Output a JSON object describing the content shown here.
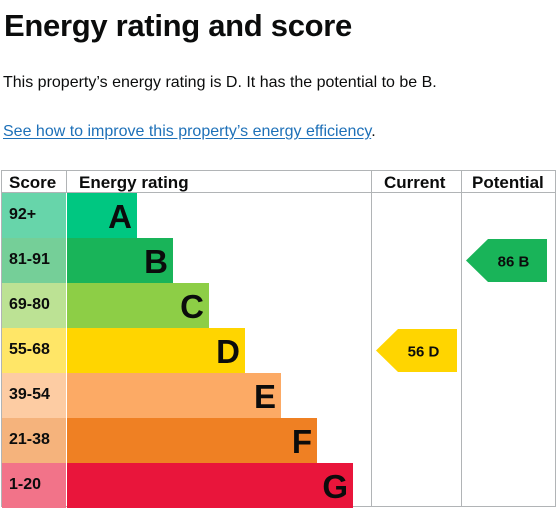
{
  "page": {
    "title": "Energy rating and score",
    "summary": "This property’s energy rating is D. It has the potential to be B.",
    "improve_link": "See how to improve this property’s energy efficiency",
    "improve_suffix": "."
  },
  "table": {
    "headers": {
      "score": "Score",
      "rating": "Energy rating",
      "current": "Current",
      "potential": "Potential"
    },
    "bands": [
      {
        "range": "92+",
        "letter": "A",
        "color": "#00c781",
        "range_bg": "#67d5aa"
      },
      {
        "range": "81-91",
        "letter": "B",
        "color": "#19b459",
        "range_bg": "#75cf98"
      },
      {
        "range": "69-80",
        "letter": "C",
        "color": "#8dce46",
        "range_bg": "#bce294"
      },
      {
        "range": "55-68",
        "letter": "D",
        "color": "#ffd500",
        "range_bg": "#ffe667"
      },
      {
        "range": "39-54",
        "letter": "E",
        "color": "#fcaa65",
        "range_bg": "#fdcca3"
      },
      {
        "range": "21-38",
        "letter": "F",
        "color": "#ef8023",
        "range_bg": "#f5b37c"
      },
      {
        "range": "1-20",
        "letter": "G",
        "color": "#e9153b",
        "range_bg": "#f27389"
      }
    ]
  },
  "current": {
    "score": "56",
    "band": "D",
    "label": "56 D",
    "color": "#ffd500"
  },
  "potential": {
    "score": "86",
    "band": "B",
    "label": "86 B",
    "color": "#19b459"
  }
}
